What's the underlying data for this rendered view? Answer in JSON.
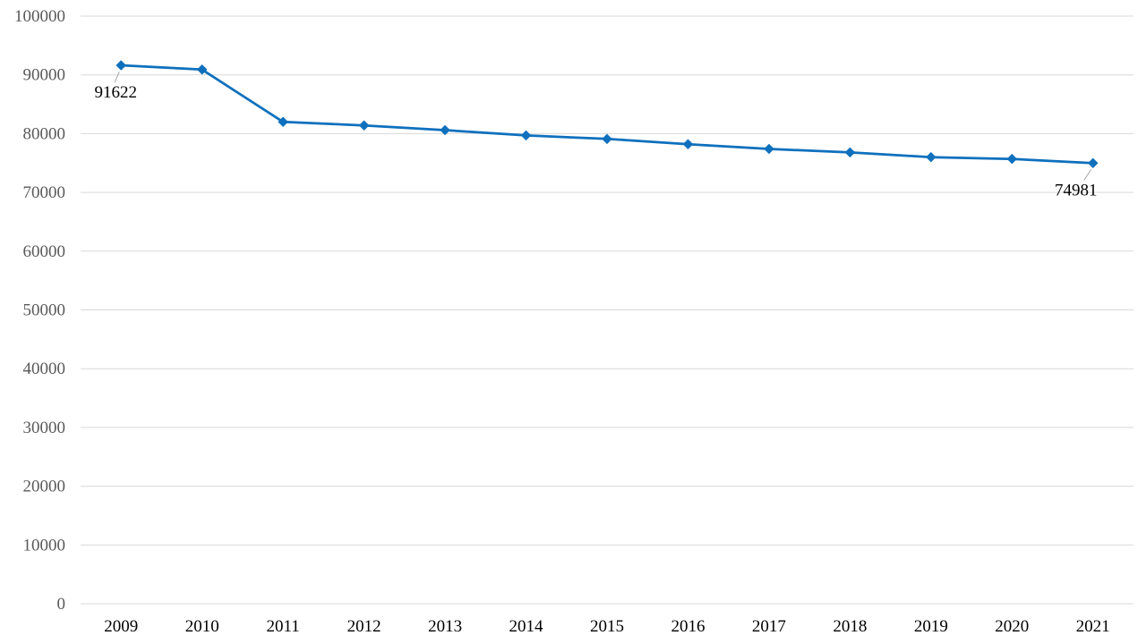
{
  "chart_data": {
    "type": "line",
    "title": "",
    "xlabel": "",
    "ylabel": "",
    "categories": [
      "2009",
      "2010",
      "2011",
      "2012",
      "2013",
      "2014",
      "2015",
      "2016",
      "2017",
      "2018",
      "2019",
      "2020",
      "2021"
    ],
    "series": [
      {
        "values": [
          91622,
          90900,
          82000,
          81400,
          80600,
          79700,
          79100,
          78200,
          77400,
          76800,
          76000,
          75700,
          74981
        ],
        "color": "#0F70BD",
        "marker": "diamond"
      }
    ],
    "ylim": [
      0,
      100000
    ],
    "yticks": [
      "0",
      "10000",
      "20000",
      "30000",
      "40000",
      "50000",
      "60000",
      "70000",
      "80000",
      "90000",
      "100000"
    ],
    "data_labels": [
      {
        "index": 0,
        "text": "91622"
      },
      {
        "index": 12,
        "text": "74981"
      }
    ],
    "grid": true,
    "legend": "none"
  }
}
